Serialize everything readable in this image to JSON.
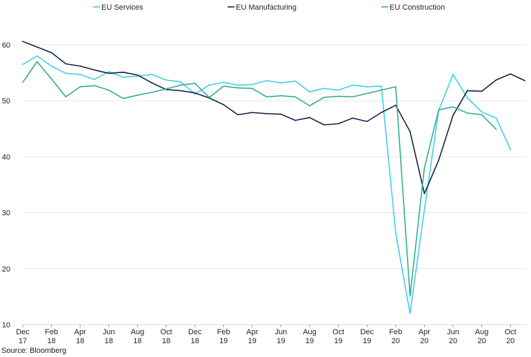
{
  "chart_data": {
    "type": "line",
    "title": "",
    "xlabel": "",
    "ylabel": "",
    "ylim": [
      10,
      65
    ],
    "yticks": [
      10,
      20,
      30,
      40,
      50,
      60
    ],
    "grid": true,
    "legend_position": "top",
    "x_tick_labels": [
      {
        "month": "Dec",
        "year": "17"
      },
      {
        "month": "Feb",
        "year": "18"
      },
      {
        "month": "Apr",
        "year": "18"
      },
      {
        "month": "Jun",
        "year": "18"
      },
      {
        "month": "Aug",
        "year": "18"
      },
      {
        "month": "Oct",
        "year": "18"
      },
      {
        "month": "Dec",
        "year": "18"
      },
      {
        "month": "Feb",
        "year": "19"
      },
      {
        "month": "Apr",
        "year": "19"
      },
      {
        "month": "Jun",
        "year": "19"
      },
      {
        "month": "Aug",
        "year": "19"
      },
      {
        "month": "Oct",
        "year": "19"
      },
      {
        "month": "Dec",
        "year": "19"
      },
      {
        "month": "Feb",
        "year": "20"
      },
      {
        "month": "Apr",
        "year": "20"
      },
      {
        "month": "Jun",
        "year": "20"
      },
      {
        "month": "Aug",
        "year": "20"
      },
      {
        "month": "Oct",
        "year": "20"
      }
    ],
    "x_start_month": "Dec 17",
    "series": [
      {
        "name": "EU Services",
        "color": "#3ecfe8",
        "values": [
          56.5,
          58.0,
          56.2,
          54.9,
          54.7,
          53.8,
          55.2,
          54.2,
          54.4,
          54.7,
          53.7,
          53.4,
          51.2,
          52.8,
          53.3,
          52.8,
          52.9,
          53.6,
          53.2,
          53.5,
          51.6,
          52.2,
          51.9,
          52.8,
          52.5,
          52.6,
          26.4,
          12.0,
          30.5,
          48.3,
          54.7,
          50.5,
          48.0,
          46.9,
          41.3
        ]
      },
      {
        "name": "EU Manufacturing",
        "color": "#0f2147",
        "values": [
          60.6,
          59.6,
          58.6,
          56.6,
          56.2,
          55.5,
          54.9,
          55.1,
          54.6,
          53.2,
          52.0,
          51.8,
          51.4,
          50.5,
          49.3,
          47.5,
          47.9,
          47.7,
          47.6,
          46.5,
          47.0,
          45.7,
          45.9,
          46.9,
          46.3,
          47.9,
          49.2,
          44.5,
          33.4,
          39.4,
          47.4,
          51.8,
          51.7,
          53.7,
          54.8,
          53.6
        ]
      },
      {
        "name": "EU Construction",
        "color": "#2fae8c",
        "values": [
          53.3,
          57.0,
          53.9,
          50.7,
          52.5,
          52.7,
          51.9,
          50.4,
          51.0,
          51.5,
          52.1,
          52.8,
          53.1,
          50.6,
          52.6,
          52.3,
          52.2,
          50.7,
          50.9,
          50.7,
          49.1,
          50.6,
          50.8,
          50.7,
          51.3,
          51.9,
          52.5,
          15.1,
          38.0,
          48.4,
          48.9,
          47.8,
          47.5,
          44.9
        ]
      }
    ]
  },
  "source": "Source: Bloomberg"
}
